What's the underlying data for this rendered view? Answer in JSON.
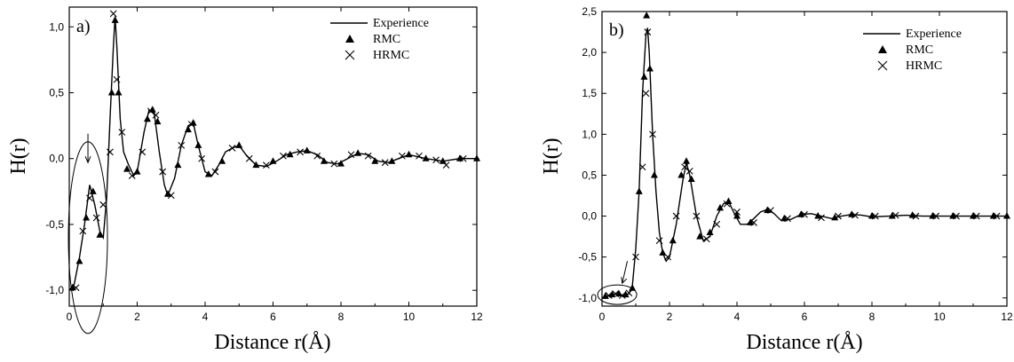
{
  "chart_data": [
    {
      "panel": "a)",
      "type": "line",
      "xlabel": "Distance r(Å)",
      "ylabel": "H(r)",
      "xlim": [
        0,
        12
      ],
      "ylim": [
        -1.12,
        1.15
      ],
      "xticks": [
        0,
        2,
        4,
        6,
        8,
        10,
        12
      ],
      "xtick_labels": [
        "0",
        "2",
        "4",
        "6",
        "8",
        "10",
        "12"
      ],
      "yticks": [
        -1.0,
        -0.5,
        0.0,
        0.5,
        1.0
      ],
      "ytick_labels": [
        "-1,0",
        "-0,5",
        "0,0",
        "0,5",
        "1,0"
      ],
      "legend": {
        "placement": "top-right",
        "entries": [
          "Experience",
          "RMC",
          "HRMC"
        ]
      },
      "series": [
        {
          "name": "Experience",
          "marker": "line",
          "x": [
            0.0,
            0.15,
            0.3,
            0.45,
            0.6,
            0.75,
            0.9,
            1.0,
            1.1,
            1.2,
            1.3,
            1.35,
            1.4,
            1.5,
            1.6,
            1.75,
            1.9,
            2.0,
            2.2,
            2.35,
            2.5,
            2.65,
            2.8,
            2.9,
            3.1,
            3.3,
            3.5,
            3.65,
            3.8,
            4.0,
            4.2,
            4.4,
            4.6,
            4.8,
            5.0,
            5.2,
            5.5,
            5.8,
            6.1,
            6.4,
            6.7,
            7.0,
            7.3,
            7.6,
            7.9,
            8.2,
            8.5,
            8.8,
            9.1,
            9.4,
            9.7,
            10.0,
            10.5,
            11.0,
            11.5,
            12.0
          ],
          "y": [
            -1.0,
            -0.95,
            -0.75,
            -0.5,
            -0.2,
            -0.35,
            -0.55,
            -0.6,
            -0.3,
            0.3,
            0.85,
            1.08,
            0.85,
            0.3,
            0.05,
            -0.05,
            -0.13,
            -0.1,
            0.2,
            0.37,
            0.35,
            0.05,
            -0.2,
            -0.28,
            -0.15,
            0.1,
            0.25,
            0.27,
            0.1,
            -0.1,
            -0.13,
            -0.05,
            0.05,
            0.08,
            0.1,
            0.03,
            -0.05,
            -0.06,
            -0.02,
            0.03,
            0.05,
            0.06,
            0.03,
            -0.03,
            -0.04,
            0.0,
            0.04,
            0.03,
            -0.02,
            -0.03,
            0.0,
            0.03,
            0.0,
            -0.02,
            0.0,
            0.0
          ]
        },
        {
          "name": "RMC",
          "marker": "triangle",
          "x": [
            0.1,
            0.3,
            0.5,
            0.7,
            0.9,
            1.25,
            1.35,
            1.45,
            1.7,
            2.0,
            2.3,
            2.45,
            2.6,
            2.9,
            3.2,
            3.5,
            3.65,
            3.8,
            4.1,
            4.5,
            5.0,
            5.5,
            6.0,
            6.5,
            7.0,
            7.5,
            8.0,
            8.5,
            9.0,
            9.5,
            10.0,
            10.5,
            11.0,
            11.5,
            12.0
          ],
          "y": [
            -0.98,
            -0.78,
            -0.45,
            -0.25,
            -0.58,
            0.5,
            1.05,
            0.5,
            -0.08,
            -0.1,
            0.3,
            0.37,
            0.28,
            -0.27,
            -0.05,
            0.22,
            0.27,
            0.1,
            -0.12,
            -0.02,
            0.1,
            -0.05,
            -0.02,
            0.03,
            0.06,
            -0.02,
            -0.04,
            0.04,
            -0.02,
            -0.02,
            0.03,
            0.0,
            -0.02,
            0.0,
            0.0
          ]
        },
        {
          "name": "HRMC",
          "marker": "cross",
          "x": [
            0.2,
            0.4,
            0.6,
            0.8,
            1.0,
            1.2,
            1.3,
            1.4,
            1.55,
            1.85,
            2.15,
            2.4,
            2.55,
            2.75,
            3.0,
            3.3,
            3.6,
            3.9,
            4.3,
            4.8,
            5.3,
            5.8,
            6.3,
            6.8,
            7.3,
            7.8,
            8.3,
            8.8,
            9.3,
            9.8,
            10.3,
            10.8,
            11.1,
            11.6
          ],
          "y": [
            -0.98,
            -0.55,
            -0.3,
            -0.45,
            -0.35,
            0.05,
            1.1,
            0.6,
            0.2,
            -0.13,
            0.05,
            0.36,
            0.33,
            -0.1,
            -0.28,
            0.1,
            0.26,
            0.0,
            -0.1,
            0.08,
            0.0,
            -0.05,
            0.02,
            0.05,
            0.02,
            -0.04,
            0.03,
            0.02,
            -0.03,
            0.02,
            0.02,
            -0.01,
            -0.05,
            0.0
          ]
        }
      ]
    },
    {
      "panel": "b)",
      "type": "line",
      "xlabel": "Distance r(Å)",
      "ylabel": "H(r)",
      "xlim": [
        0,
        12
      ],
      "ylim": [
        -1.1,
        2.5
      ],
      "xticks": [
        0,
        2,
        4,
        6,
        8,
        10,
        12
      ],
      "xtick_labels": [
        "0",
        "2",
        "4",
        "6",
        "8",
        "10",
        "12"
      ],
      "yticks": [
        -1.0,
        -0.5,
        0.0,
        0.5,
        1.0,
        1.5,
        2.0,
        2.5
      ],
      "ytick_labels": [
        "-1,0",
        "-0,5",
        "0,0",
        "0,5",
        "1,0",
        "1,5",
        "2,0",
        "2,5"
      ],
      "legend": {
        "placement": "top-right",
        "entries": [
          "Experience",
          "RMC",
          "HRMC"
        ]
      },
      "series": [
        {
          "name": "Experience",
          "marker": "line",
          "x": [
            0.0,
            0.2,
            0.4,
            0.6,
            0.8,
            0.9,
            1.0,
            1.1,
            1.2,
            1.3,
            1.35,
            1.4,
            1.5,
            1.6,
            1.7,
            1.8,
            1.9,
            2.0,
            2.2,
            2.4,
            2.5,
            2.6,
            2.8,
            3.0,
            3.2,
            3.4,
            3.6,
            3.75,
            3.9,
            4.1,
            4.3,
            4.5,
            4.7,
            4.9,
            5.1,
            5.3,
            5.6,
            5.9,
            6.2,
            6.5,
            6.8,
            7.1,
            7.4,
            7.7,
            8.0,
            8.5,
            9.0,
            9.5,
            10.0,
            10.5,
            11.0,
            11.5,
            12.0
          ],
          "y": [
            -1.0,
            -0.97,
            -0.95,
            -0.97,
            -0.95,
            -0.85,
            -0.4,
            0.3,
            1.5,
            2.2,
            2.3,
            2.0,
            1.0,
            0.3,
            -0.2,
            -0.45,
            -0.55,
            -0.5,
            -0.1,
            0.45,
            0.65,
            0.5,
            0.0,
            -0.3,
            -0.25,
            0.0,
            0.15,
            0.18,
            0.05,
            -0.1,
            -0.1,
            -0.03,
            0.05,
            0.08,
            0.03,
            -0.05,
            -0.04,
            0.02,
            0.03,
            0.0,
            -0.03,
            0.0,
            0.02,
            0.01,
            -0.01,
            0.0,
            0.01,
            0.0,
            0.0,
            0.0,
            0.0,
            0.0,
            0.0
          ]
        },
        {
          "name": "RMC",
          "marker": "triangle",
          "x": [
            0.1,
            0.3,
            0.5,
            0.7,
            0.9,
            1.1,
            1.25,
            1.32,
            1.42,
            1.55,
            1.8,
            2.1,
            2.35,
            2.5,
            2.65,
            2.9,
            3.2,
            3.5,
            3.75,
            4.0,
            4.4,
            4.9,
            5.4,
            5.9,
            6.4,
            6.9,
            7.4,
            8.0,
            8.6,
            9.2,
            9.8,
            10.4,
            11.0,
            11.6,
            12.0
          ],
          "y": [
            -0.98,
            -0.96,
            -0.95,
            -0.96,
            -0.88,
            0.3,
            1.7,
            2.45,
            1.8,
            0.5,
            -0.45,
            -0.3,
            0.5,
            0.67,
            0.45,
            -0.25,
            -0.2,
            0.1,
            0.18,
            0.0,
            -0.08,
            0.07,
            -0.03,
            0.02,
            0.0,
            -0.02,
            0.02,
            0.0,
            0.0,
            0.01,
            0.0,
            0.0,
            0.0,
            0.0,
            0.0
          ]
        },
        {
          "name": "HRMC",
          "marker": "cross",
          "x": [
            0.2,
            0.4,
            0.6,
            0.8,
            1.0,
            1.2,
            1.3,
            1.35,
            1.5,
            1.7,
            1.95,
            2.2,
            2.45,
            2.6,
            2.8,
            3.1,
            3.4,
            3.7,
            4.0,
            4.5,
            5.0,
            5.5,
            6.0,
            6.5,
            7.0,
            7.5,
            8.1,
            8.7,
            9.3,
            9.9,
            10.5,
            11.1,
            11.7
          ],
          "y": [
            -0.97,
            -0.95,
            -0.97,
            -0.94,
            -0.5,
            0.6,
            1.5,
            2.25,
            1.0,
            -0.3,
            -0.5,
            0.0,
            0.6,
            0.55,
            0.0,
            -0.28,
            -0.1,
            0.15,
            0.05,
            -0.08,
            0.07,
            -0.03,
            0.02,
            -0.02,
            0.0,
            0.01,
            0.0,
            0.01,
            0.0,
            0.0,
            0.0,
            0.0,
            0.0
          ]
        }
      ]
    }
  ]
}
